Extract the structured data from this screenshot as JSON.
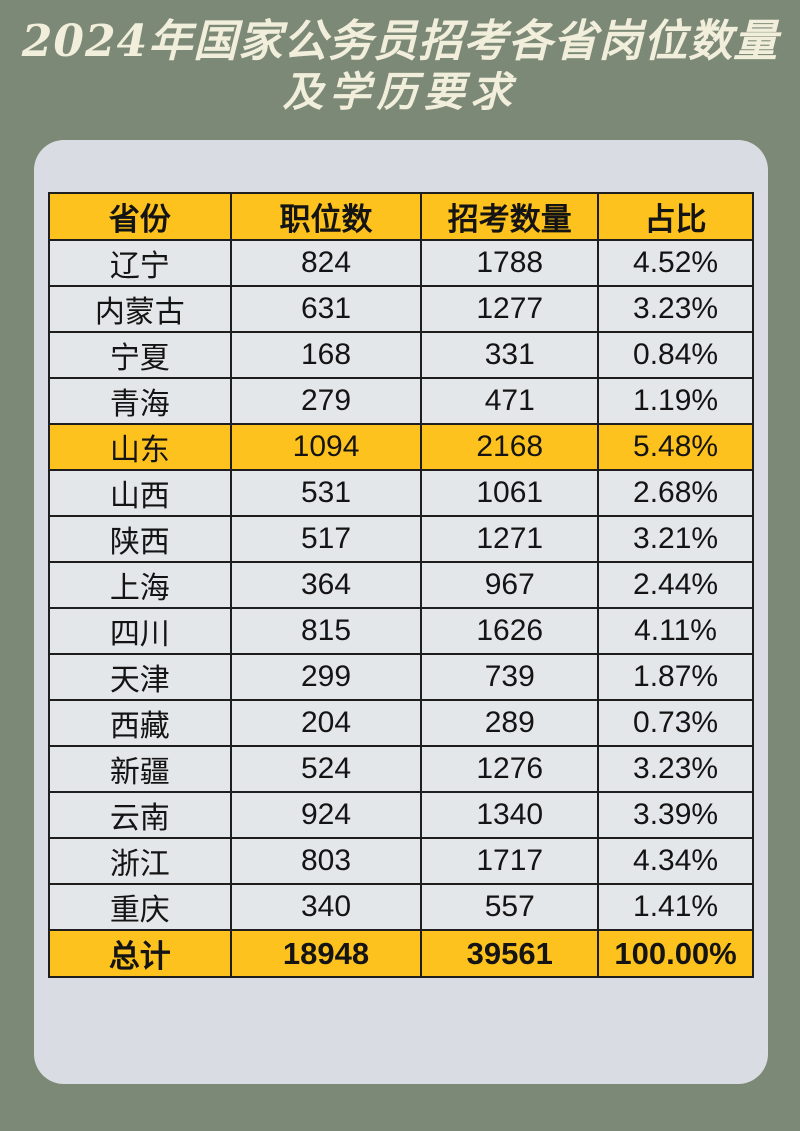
{
  "title": {
    "line1": "2024年国家公务员招考各省岗位数量",
    "line2": "及学历要求"
  },
  "chart_data": {
    "type": "table",
    "title": "2024年国家公务员招考各省岗位数量及学历要求",
    "columns": [
      "省份",
      "职位数",
      "招考数量",
      "占比"
    ],
    "rows": [
      [
        "辽宁",
        "824",
        "1788",
        "4.52%"
      ],
      [
        "内蒙古",
        "631",
        "1277",
        "3.23%"
      ],
      [
        "宁夏",
        "168",
        "331",
        "0.84%"
      ],
      [
        "青海",
        "279",
        "471",
        "1.19%"
      ],
      [
        "山东",
        "1094",
        "2168",
        "5.48%"
      ],
      [
        "山西",
        "531",
        "1061",
        "2.68%"
      ],
      [
        "陕西",
        "517",
        "1271",
        "3.21%"
      ],
      [
        "上海",
        "364",
        "967",
        "2.44%"
      ],
      [
        "四川",
        "815",
        "1626",
        "4.11%"
      ],
      [
        "天津",
        "299",
        "739",
        "1.87%"
      ],
      [
        "西藏",
        "204",
        "289",
        "0.73%"
      ],
      [
        "新疆",
        "524",
        "1276",
        "3.23%"
      ],
      [
        "云南",
        "924",
        "1340",
        "3.39%"
      ],
      [
        "浙江",
        "803",
        "1717",
        "4.34%"
      ],
      [
        "重庆",
        "340",
        "557",
        "1.41%"
      ]
    ],
    "highlighted_rows": [
      "山东"
    ],
    "total_row": [
      "总计",
      "18948",
      "39561",
      "100.00%"
    ]
  },
  "colors": {
    "background": "#7C8977",
    "card": "#D9DDE3",
    "row": "#E4E7EA",
    "accent_yellow": "#FDC21D",
    "title_text": "#F1EEDB",
    "border": "#1E1E1E",
    "cell_text": "#141414"
  }
}
